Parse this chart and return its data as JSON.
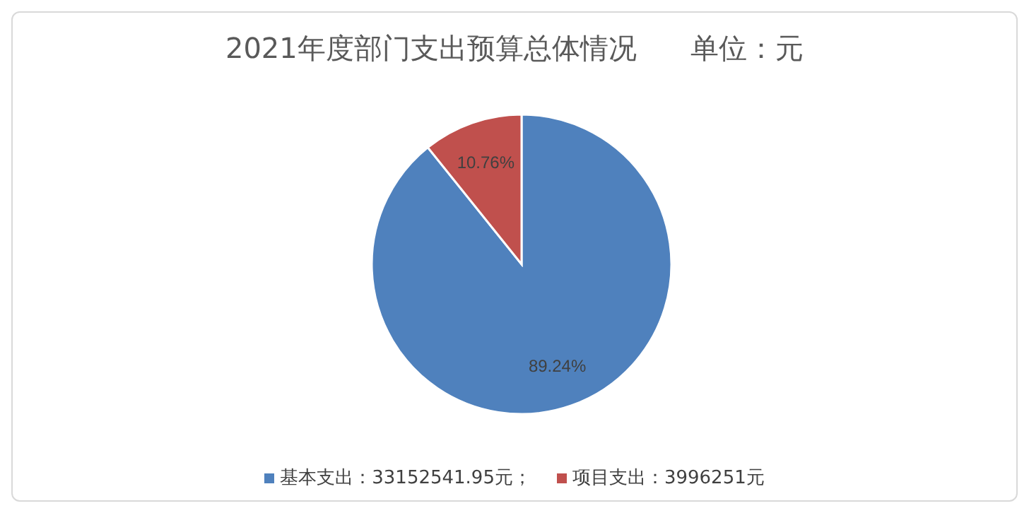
{
  "chart_data": {
    "type": "pie",
    "title": "2021年度部门支出预算总体情况      单位：元",
    "categories": [
      "基本支出：33152541.95元",
      "项目支出：3996251元"
    ],
    "values": [
      89.24,
      10.76
    ],
    "value_labels": [
      "89.24%",
      "10.76%"
    ],
    "colors": [
      "#4f81bd",
      "#c0504d"
    ],
    "legend": "bottom",
    "annotations": [
      "；"
    ]
  }
}
